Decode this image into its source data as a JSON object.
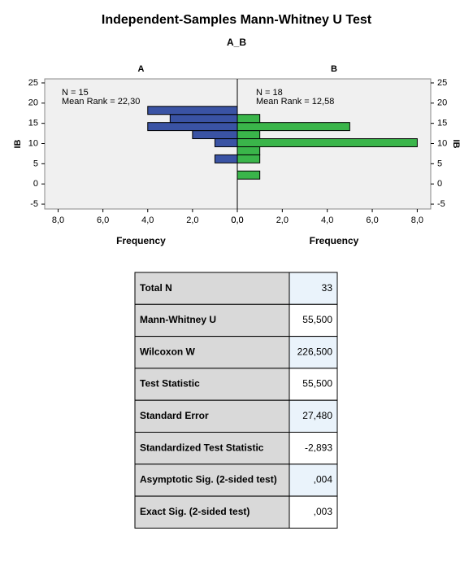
{
  "chart_data": {
    "type": "histogram",
    "title": "Independent-Samples Mann-Whitney U Test",
    "subtitle": "A_B",
    "ylabel": "IB",
    "ylim": [
      -6.2,
      26
    ],
    "yticks": [
      -5,
      0,
      5,
      10,
      15,
      20,
      25
    ],
    "xlim": [
      0,
      8.6
    ],
    "xticks": [
      {
        "value": 8,
        "label": "8,0"
      },
      {
        "value": 6,
        "label": "6,0"
      },
      {
        "value": 4,
        "label": "4,0"
      },
      {
        "value": 2,
        "label": "2,0"
      },
      {
        "value": 0,
        "label": "0,0"
      }
    ],
    "bins": [
      1.2,
      3.2,
      5.2,
      7.2,
      9.2,
      11.2,
      13.2,
      15.2,
      17.2,
      19.2
    ],
    "panels": [
      {
        "name": "A",
        "xlabel": "Frequency",
        "color": "#3a53a4",
        "annotations": [
          "N = 15",
          "Mean Rank = 22,30"
        ],
        "counts": [
          0,
          0,
          1,
          0,
          1,
          2,
          4,
          3,
          4
        ]
      },
      {
        "name": "B",
        "xlabel": "Frequency",
        "color": "#3ab54a",
        "annotations": [
          "N = 18",
          "Mean Rank = 12,58"
        ],
        "counts": [
          1,
          0,
          1,
          1,
          8,
          1,
          5,
          1,
          0
        ]
      }
    ]
  },
  "table": {
    "rows": [
      [
        "Total N",
        "33"
      ],
      [
        "Mann-Whitney U",
        "55,500"
      ],
      [
        "Wilcoxon W",
        "226,500"
      ],
      [
        "Test Statistic",
        "55,500"
      ],
      [
        "Standard Error",
        "27,480"
      ],
      [
        "Standardized Test Statistic",
        "-2,893"
      ],
      [
        "Asymptotic Sig. (2-sided test)",
        ",004"
      ],
      [
        "Exact Sig. (2-sided test)",
        ",003"
      ]
    ]
  }
}
